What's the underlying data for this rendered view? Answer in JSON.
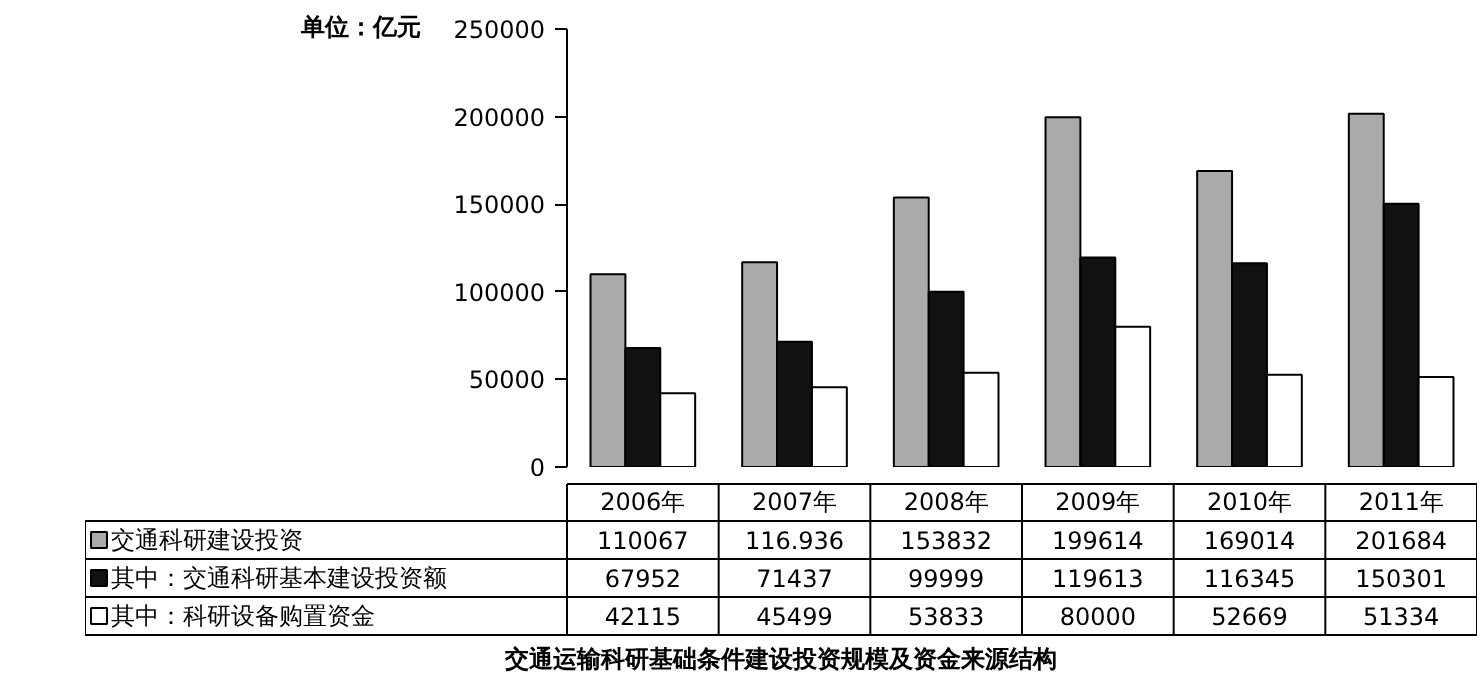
{
  "chart_data": {
    "type": "bar",
    "title": "交通运输科研基础条件建设投资规模及资金来源结构",
    "ylabel": "单位：亿元",
    "categories": [
      "2006年",
      "2007年",
      "2008年",
      "2009年",
      "2010年",
      "2011年"
    ],
    "series": [
      {
        "name": "交通科研建设投资",
        "color": "#aaaaaa",
        "values": [
          110067,
          116936,
          153832,
          199614,
          169014,
          201684
        ],
        "value_labels": [
          "110067",
          "116.936",
          "153832",
          "199614",
          "169014",
          "201684"
        ]
      },
      {
        "name": "其中：交通科研基本建设投资额",
        "color": "#111111",
        "values": [
          67952,
          71437,
          99999,
          119613,
          116345,
          150301
        ],
        "value_labels": [
          "67952",
          "71437",
          "99999",
          "119613",
          "116345",
          "150301"
        ]
      },
      {
        "name": "其中：科研设备购置资金",
        "color": "#ffffff",
        "values": [
          42115,
          45499,
          53833,
          80000,
          52669,
          51334
        ],
        "value_labels": [
          "42115",
          "45499",
          "53833",
          "80000",
          "52669",
          "51334"
        ]
      }
    ],
    "ylim": [
      0,
      250000
    ],
    "yticks": [
      0,
      50000,
      100000,
      150000,
      200000,
      250000
    ],
    "grid": false,
    "legend": "bottom left"
  }
}
